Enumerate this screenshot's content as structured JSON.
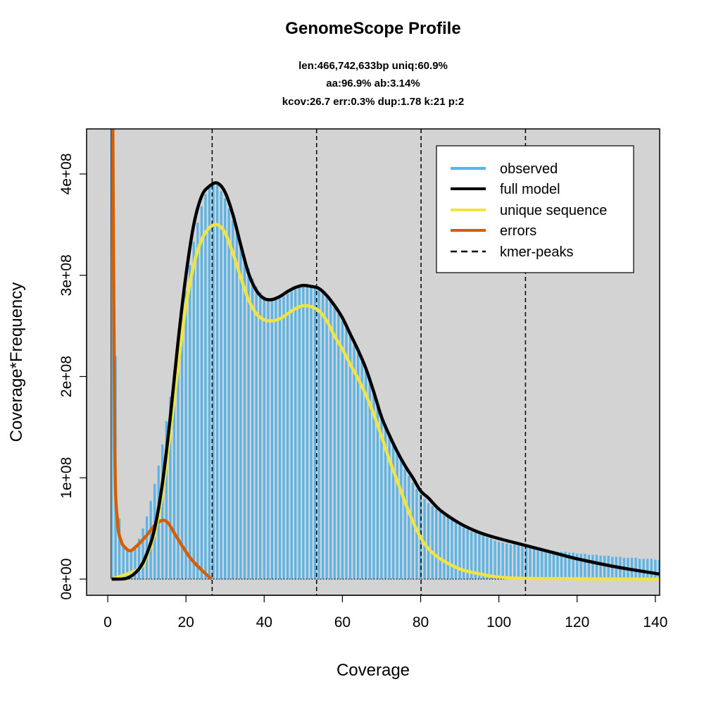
{
  "chart_data": {
    "type": "bar",
    "title": "GenomeScope Profile",
    "subtitle_lines": [
      "len:466,742,633bp uniq:60.9%",
      "aa:96.9% ab:3.14%",
      "kcov:26.7 err:0.3%  dup:1.78  k:21 p:2"
    ],
    "xlabel": "Coverage",
    "ylabel": "Coverage*Frequency",
    "xlim": [
      -5.4,
      141.1
    ],
    "ylim": [
      -16000000,
      444500000
    ],
    "x_ticks": [
      0,
      20,
      40,
      60,
      80,
      100,
      120,
      140
    ],
    "x_tick_labels": [
      "0",
      "20",
      "40",
      "60",
      "80",
      "100",
      "120",
      "140"
    ],
    "y_ticks": [
      0,
      100000000,
      200000000,
      300000000,
      400000000
    ],
    "y_tick_labels": [
      "0e+00",
      "1e+08",
      "2e+08",
      "3e+08",
      "4e+08"
    ],
    "background": "#D3D3D3",
    "grid": false,
    "legend_position": "top-right",
    "y_unit_multiplier": 100000000,
    "observed": {
      "name": "observed",
      "color": "#56B4E9",
      "x_start": 1,
      "values": [
        8.0,
        2.2,
        0.6,
        0.33,
        0.28,
        0.28,
        0.33,
        0.4,
        0.5,
        0.62,
        0.77,
        0.94,
        1.12,
        1.33,
        1.56,
        1.8,
        2.05,
        2.32,
        2.58,
        2.84,
        3.1,
        3.33,
        3.52,
        3.68,
        3.8,
        3.87,
        3.91,
        3.89,
        3.83,
        3.76,
        3.66,
        3.54,
        3.42,
        3.3,
        3.18,
        3.07,
        2.97,
        2.89,
        2.83,
        2.79,
        2.77,
        2.76,
        2.76,
        2.77,
        2.79,
        2.82,
        2.84,
        2.86,
        2.88,
        2.89,
        2.89,
        2.89,
        2.88,
        2.86,
        2.83,
        2.79,
        2.74,
        2.68,
        2.62,
        2.55,
        2.48,
        2.4,
        2.31,
        2.23,
        2.15,
        2.06,
        1.96,
        1.85,
        1.73,
        1.63,
        1.53,
        1.43,
        1.34,
        1.245,
        1.17,
        1.09,
        1.02,
        0.95,
        0.89,
        0.84,
        0.79,
        0.75,
        0.72,
        0.69,
        0.66,
        0.63,
        0.61,
        0.59,
        0.56,
        0.53,
        0.51,
        0.49,
        0.47,
        0.46,
        0.44,
        0.43,
        0.41,
        0.4,
        0.38,
        0.37,
        0.36,
        0.35,
        0.34,
        0.34,
        0.33,
        0.32,
        0.32,
        0.31,
        0.3,
        0.3,
        0.29,
        0.29,
        0.28,
        0.28,
        0.27,
        0.27,
        0.27,
        0.26,
        0.26,
        0.25,
        0.25,
        0.25,
        0.24,
        0.24,
        0.24,
        0.23,
        0.23,
        0.23,
        0.22,
        0.22,
        0.22,
        0.21,
        0.21,
        0.21,
        0.21,
        0.2,
        0.2,
        0.2,
        0.2,
        0.19,
        0.19
      ]
    },
    "series": [
      {
        "name": "full model",
        "color": "#000000",
        "x": [
          1,
          5,
          8,
          10,
          12,
          14,
          16,
          18,
          20,
          22,
          24,
          26,
          28,
          30,
          32,
          34,
          36,
          38,
          40,
          42,
          44,
          46,
          48,
          50,
          52,
          54,
          56,
          58,
          60,
          62,
          64,
          66,
          68,
          70,
          72,
          74,
          76,
          78,
          80,
          82,
          85,
          90,
          95,
          100,
          107,
          115,
          120,
          130,
          141
        ],
        "y": [
          0,
          0.01,
          0.1,
          0.25,
          0.5,
          0.95,
          1.6,
          2.35,
          3.0,
          3.5,
          3.78,
          3.88,
          3.91,
          3.82,
          3.6,
          3.3,
          3.02,
          2.85,
          2.77,
          2.76,
          2.79,
          2.84,
          2.88,
          2.9,
          2.89,
          2.87,
          2.8,
          2.7,
          2.58,
          2.42,
          2.26,
          2.08,
          1.85,
          1.6,
          1.42,
          1.26,
          1.12,
          1.0,
          0.87,
          0.8,
          0.68,
          0.55,
          0.46,
          0.4,
          0.33,
          0.25,
          0.2,
          0.12,
          0.05
        ]
      },
      {
        "name": "unique sequence",
        "color": "#F0E442",
        "x": [
          1,
          8,
          10,
          12,
          14,
          16,
          18,
          20,
          22,
          24,
          26,
          28,
          30,
          32,
          34,
          36,
          38,
          40,
          42,
          44,
          46,
          48,
          50,
          52,
          54,
          56,
          58,
          60,
          62,
          64,
          66,
          68,
          70,
          72,
          74,
          76,
          78,
          80,
          82,
          85,
          90,
          94,
          100,
          110,
          141
        ],
        "y": [
          0,
          0.1,
          0.23,
          0.45,
          0.85,
          1.45,
          2.1,
          2.7,
          3.1,
          3.35,
          3.47,
          3.5,
          3.42,
          3.22,
          2.98,
          2.76,
          2.62,
          2.56,
          2.55,
          2.57,
          2.62,
          2.67,
          2.7,
          2.69,
          2.65,
          2.55,
          2.4,
          2.27,
          2.12,
          1.98,
          1.82,
          1.63,
          1.41,
          1.18,
          0.97,
          0.76,
          0.57,
          0.41,
          0.3,
          0.2,
          0.1,
          0.06,
          0.02,
          0.005,
          0
        ]
      },
      {
        "name": "errors",
        "color": "#D55E00",
        "x": [
          1,
          1.3,
          1.8,
          2.5,
          3.5,
          4.5,
          5.8,
          7.5,
          9.7,
          12,
          14,
          15.5,
          17.4,
          19.5,
          21.5,
          24,
          26.5
        ],
        "y": [
          8,
          4.5,
          1.3,
          0.57,
          0.37,
          0.31,
          0.28,
          0.33,
          0.42,
          0.53,
          0.58,
          0.55,
          0.43,
          0.3,
          0.19,
          0.09,
          0.0
        ]
      }
    ],
    "kmer_peaks": {
      "name": "kmer-peaks",
      "x": [
        26.7,
        53.4,
        80.1,
        106.8
      ]
    },
    "legend": [
      "observed",
      "full model",
      "unique sequence",
      "errors",
      "kmer-peaks"
    ]
  }
}
